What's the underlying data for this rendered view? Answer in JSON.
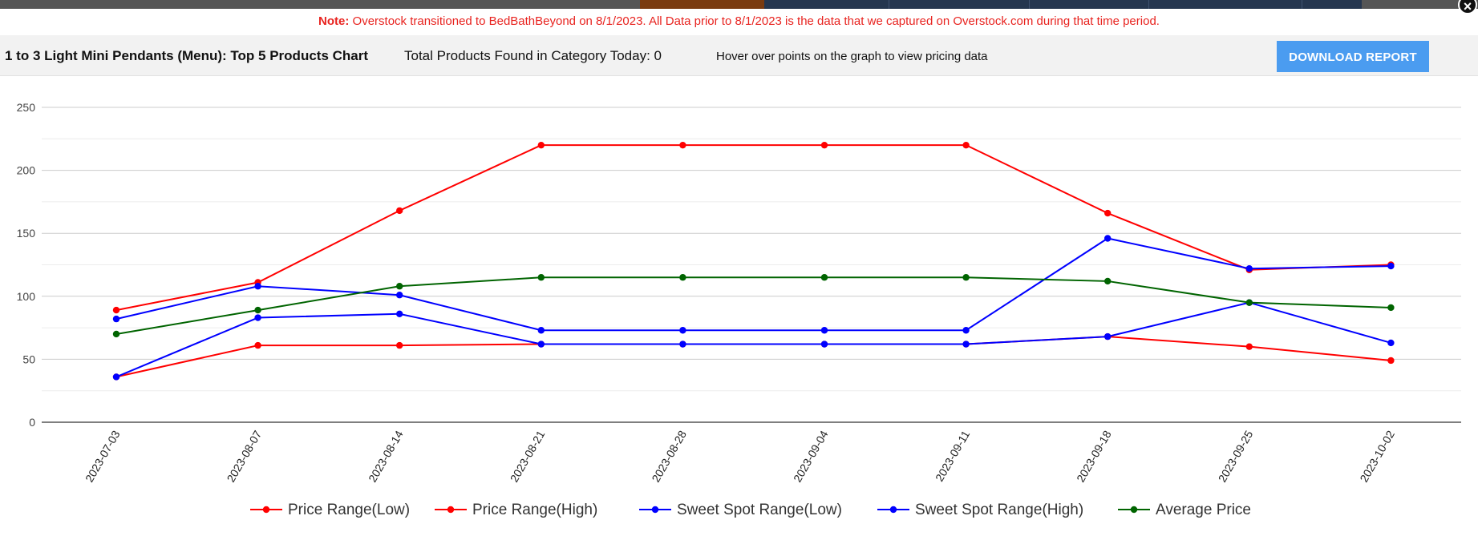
{
  "note": {
    "label": "Note:",
    "text": "Overstock transitioned to BedBathBeyond on 8/1/2023. All Data prior to 8/1/2023 is the data that we captured on Overstock.com during that time period."
  },
  "header": {
    "title": "1 to 3 Light Mini Pendants (Menu): Top 5 Products Chart",
    "total_found": "Total Products Found in Category Today: 0",
    "hover_hint": "Hover over points on the graph to view pricing data",
    "download_label": "DOWNLOAD REPORT"
  },
  "close_label": "×",
  "chart_data": {
    "type": "line",
    "title": "",
    "xlabel": "",
    "ylabel": "",
    "ylim": [
      0,
      250
    ],
    "yticks": [
      0,
      50,
      100,
      150,
      200,
      250
    ],
    "grid": true,
    "legend_position": "bottom",
    "x": [
      "2023-07-03",
      "2023-08-07",
      "2023-08-14",
      "2023-08-21",
      "2023-08-28",
      "2023-09-04",
      "2023-09-11",
      "2023-09-18",
      "2023-09-25",
      "2023-10-02"
    ],
    "series": [
      {
        "name": "Price Range(Low)",
        "color": "#ff0000",
        "values": [
          36,
          61,
          61,
          62,
          62,
          62,
          62,
          68,
          60,
          49
        ]
      },
      {
        "name": "Price Range(High)",
        "color": "#ff0000",
        "values": [
          89,
          111,
          168,
          220,
          220,
          220,
          220,
          166,
          121,
          125
        ]
      },
      {
        "name": "Sweet Spot Range(Low)",
        "color": "#0000ff",
        "values": [
          36,
          83,
          86,
          62,
          62,
          62,
          62,
          68,
          95,
          63
        ]
      },
      {
        "name": "Sweet Spot Range(High)",
        "color": "#0000ff",
        "values": [
          82,
          108,
          101,
          73,
          73,
          73,
          73,
          146,
          122,
          124
        ]
      },
      {
        "name": "Average Price",
        "color": "#006400",
        "values": [
          70,
          89,
          108,
          115,
          115,
          115,
          115,
          112,
          95,
          91
        ]
      }
    ]
  }
}
